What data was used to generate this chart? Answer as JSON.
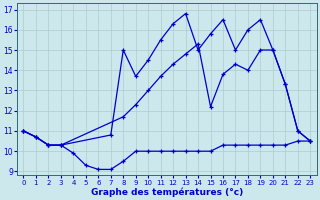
{
  "xlabel": "Graphe des températures (°c)",
  "xlim": [
    -0.5,
    23.5
  ],
  "ylim": [
    8.8,
    17.3
  ],
  "yticks": [
    9,
    10,
    11,
    12,
    13,
    14,
    15,
    16,
    17
  ],
  "xticks": [
    0,
    1,
    2,
    3,
    4,
    5,
    6,
    7,
    8,
    9,
    10,
    11,
    12,
    13,
    14,
    15,
    16,
    17,
    18,
    19,
    20,
    21,
    22,
    23
  ],
  "bg_color": "#cce8ec",
  "line_color": "#0000cc",
  "grid_color": "#aacccc",
  "line1_x": [
    0,
    1,
    2,
    3,
    4,
    5,
    6,
    7,
    8,
    9,
    10,
    11,
    12,
    13,
    14,
    15,
    16,
    17,
    18,
    19,
    20,
    21,
    22,
    23
  ],
  "line1_y": [
    11.0,
    10.7,
    10.3,
    10.3,
    9.9,
    9.3,
    9.1,
    9.1,
    9.5,
    10.0,
    10.0,
    10.0,
    10.0,
    10.0,
    10.0,
    10.0,
    10.3,
    10.3,
    10.3,
    10.3,
    10.3,
    10.3,
    10.5,
    10.5
  ],
  "line2_x": [
    0,
    1,
    2,
    3,
    8,
    9,
    10,
    11,
    12,
    13,
    14,
    15,
    16,
    17,
    18,
    19,
    20,
    21,
    22,
    23
  ],
  "line2_y": [
    11.0,
    10.7,
    10.3,
    10.3,
    11.7,
    12.3,
    13.0,
    13.7,
    14.3,
    14.8,
    15.3,
    12.2,
    13.8,
    14.3,
    14.0,
    15.0,
    15.0,
    13.3,
    11.0,
    10.5
  ],
  "line3_x": [
    0,
    1,
    2,
    3,
    7,
    8,
    9,
    10,
    11,
    12,
    13,
    14,
    15,
    16,
    17,
    18,
    19,
    20,
    21,
    22,
    23
  ],
  "line3_y": [
    11.0,
    10.7,
    10.3,
    10.3,
    10.8,
    15.0,
    13.7,
    14.5,
    15.5,
    16.3,
    16.8,
    15.0,
    15.8,
    16.5,
    15.0,
    16.0,
    16.5,
    15.0,
    13.3,
    11.0,
    10.5
  ]
}
